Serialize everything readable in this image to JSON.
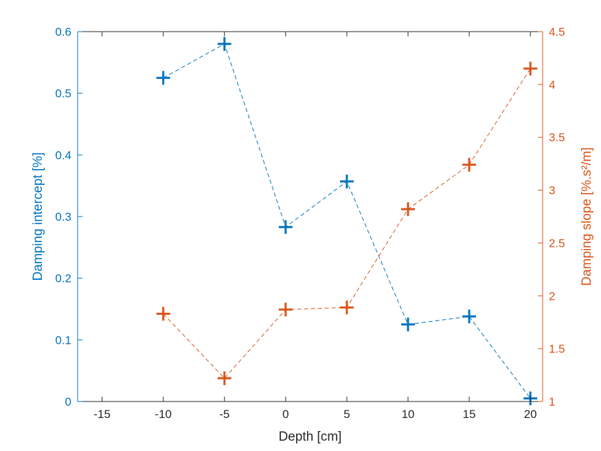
{
  "chart_data": {
    "type": "scatter",
    "title": "",
    "xlabel": "Depth [cm]",
    "ylabel_left": "Damping intercept [%]",
    "ylabel_right": "Damping slope [%.s²/m]",
    "xlim": [
      -17,
      21
    ],
    "ylim_left": [
      0,
      0.6
    ],
    "ylim_right": [
      1,
      4.5
    ],
    "x_ticks": [
      -15,
      -10,
      -5,
      0,
      5,
      10,
      15,
      20
    ],
    "x_tick_labels": [
      "-15",
      "-10",
      "-5",
      "0",
      "5",
      "10",
      "15",
      "20"
    ],
    "y_left_ticks": [
      0,
      0.1,
      0.2,
      0.3,
      0.4,
      0.5,
      0.6
    ],
    "y_left_tick_labels": [
      "0",
      "0.1",
      "0.2",
      "0.3",
      "0.4",
      "0.5",
      "0.6"
    ],
    "y_right_ticks": [
      1,
      1.5,
      2,
      2.5,
      3,
      3.5,
      4,
      4.5
    ],
    "y_right_tick_labels": [
      "1",
      "1.5",
      "2",
      "2.5",
      "3",
      "3.5",
      "4",
      "4.5"
    ],
    "grid": false,
    "colors": {
      "left": "#0072BD",
      "right": "#D95319",
      "axis_x": "#262626"
    },
    "series": [
      {
        "axis": "left",
        "marker": "+",
        "line": "dashed",
        "x": [
          -10,
          -5,
          0,
          5,
          10,
          15,
          20
        ],
        "y": [
          0.525,
          0.58,
          0.283,
          0.357,
          0.125,
          0.138,
          0.005
        ]
      },
      {
        "axis": "right",
        "marker": "+",
        "line": "dashed",
        "x": [
          -10,
          -5,
          0,
          5,
          10,
          15,
          20
        ],
        "y": [
          1.83,
          1.22,
          1.87,
          1.89,
          2.82,
          3.24,
          4.15
        ]
      }
    ]
  }
}
